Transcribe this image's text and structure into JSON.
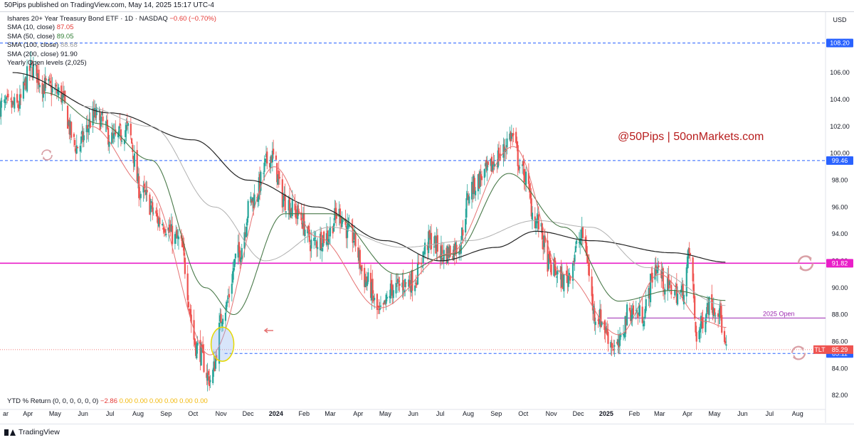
{
  "header": {
    "published": "50Pips published on TradingView.com, May 14, 2025 15:17 UTC-4"
  },
  "legend": {
    "title": "Ishares 20+ Year Treasury Bond ETF · 1D · NASDAQ",
    "title_change": "−0.60 (−0.70%)",
    "sma10_label": "SMA (10, close)",
    "sma10_value": "87.05",
    "sma50_label": "SMA (50, close)",
    "sma50_value": "89.05",
    "sma100_label": "SMA (100, close)",
    "sma100_value": "88.68",
    "sma200_label": "SMA (200, close)",
    "sma200_value": "91.90",
    "yearly_label": "Yearly Open levels (2,025)"
  },
  "ytd": {
    "label": "YTD % Return (0, 0, 0, 0, 0, 0)",
    "value": "−2.86",
    "zeros": "0.00  0.00  0.00  0.00  0.00  0.00"
  },
  "watermark": "@50Pips | 50onMarkets.com",
  "footer": {
    "brand": "TradingView"
  },
  "colors": {
    "up": "#26a69a",
    "down": "#ef5350",
    "sma10": "#e57373",
    "sma50": "#4a7a4a",
    "sma100": "#b0b0b0",
    "sma200": "#222222",
    "magenta": "#e91ec8",
    "purple": "#9c27b0",
    "blue": "#2962ff"
  },
  "chart_data": {
    "type": "candlestick",
    "currency": "USD",
    "ylim": [
      81.0,
      110.5
    ],
    "y_ticks": [
      82,
      84,
      86,
      88,
      90,
      92,
      94,
      96,
      98,
      100,
      102,
      104,
      106
    ],
    "x_ticks": [
      "ar",
      "Apr",
      "May",
      "Jun",
      "Jul",
      "Aug",
      "Sep",
      "Oct",
      "Nov",
      "Dec",
      "2024",
      "Feb",
      "Mar",
      "Apr",
      "May",
      "Jun",
      "Jul",
      "Aug",
      "Sep",
      "Oct",
      "Nov",
      "Dec",
      "2025",
      "Feb",
      "Mar",
      "Apr",
      "May",
      "Jun",
      "Jul",
      "Aug"
    ],
    "bold_ticks": [
      "2024",
      "2025"
    ],
    "price_keypoints": [
      {
        "date": "2023-03-20",
        "close": 103.5
      },
      {
        "date": "2023-04-05",
        "close": 106.3
      },
      {
        "date": "2023-04-20",
        "close": 105.0
      },
      {
        "date": "2023-05-05",
        "close": 104.5
      },
      {
        "date": "2023-05-25",
        "close": 100.5
      },
      {
        "date": "2023-06-15",
        "close": 102.8
      },
      {
        "date": "2023-07-05",
        "close": 101.0
      },
      {
        "date": "2023-07-20",
        "close": 101.8
      },
      {
        "date": "2023-08-05",
        "close": 97.0
      },
      {
        "date": "2023-08-25",
        "close": 95.0
      },
      {
        "date": "2023-09-15",
        "close": 93.5
      },
      {
        "date": "2023-10-06",
        "close": 85.5
      },
      {
        "date": "2023-10-20",
        "close": 83.2
      },
      {
        "date": "2023-11-05",
        "close": 88.5
      },
      {
        "date": "2023-11-20",
        "close": 92.5
      },
      {
        "date": "2023-12-05",
        "close": 96.5
      },
      {
        "date": "2023-12-27",
        "close": 99.8
      },
      {
        "date": "2024-01-10",
        "close": 96.5
      },
      {
        "date": "2024-01-25",
        "close": 95.5
      },
      {
        "date": "2024-02-10",
        "close": 93.3
      },
      {
        "date": "2024-02-25",
        "close": 93.8
      },
      {
        "date": "2024-03-10",
        "close": 95.5
      },
      {
        "date": "2024-03-25",
        "close": 93.8
      },
      {
        "date": "2024-04-10",
        "close": 90.5
      },
      {
        "date": "2024-04-25",
        "close": 88.0
      },
      {
        "date": "2024-05-10",
        "close": 90.0
      },
      {
        "date": "2024-05-31",
        "close": 90.5
      },
      {
        "date": "2024-06-20",
        "close": 93.5
      },
      {
        "date": "2024-07-05",
        "close": 92.5
      },
      {
        "date": "2024-07-20",
        "close": 93.0
      },
      {
        "date": "2024-08-05",
        "close": 97.5
      },
      {
        "date": "2024-08-20",
        "close": 98.5
      },
      {
        "date": "2024-09-05",
        "close": 99.8
      },
      {
        "date": "2024-09-17",
        "close": 101.3
      },
      {
        "date": "2024-10-01",
        "close": 98.5
      },
      {
        "date": "2024-10-15",
        "close": 95.0
      },
      {
        "date": "2024-11-01",
        "close": 91.5
      },
      {
        "date": "2024-11-15",
        "close": 90.5
      },
      {
        "date": "2024-12-06",
        "close": 93.8
      },
      {
        "date": "2024-12-20",
        "close": 88.0
      },
      {
        "date": "2025-01-13",
        "close": 85.5
      },
      {
        "date": "2025-01-27",
        "close": 88.3
      },
      {
        "date": "2025-02-10",
        "close": 88.0
      },
      {
        "date": "2025-02-25",
        "close": 91.5
      },
      {
        "date": "2025-03-10",
        "close": 90.0
      },
      {
        "date": "2025-03-25",
        "close": 89.5
      },
      {
        "date": "2025-04-04",
        "close": 92.5
      },
      {
        "date": "2025-04-11",
        "close": 86.5
      },
      {
        "date": "2025-04-25",
        "close": 88.8
      },
      {
        "date": "2025-05-05",
        "close": 88.5
      },
      {
        "date": "2025-05-14",
        "close": 85.3
      }
    ],
    "sma10_keypoints": [
      {
        "date": "2023-06-10",
        "close": 102.0
      },
      {
        "date": "2023-08-10",
        "close": 97.5
      },
      {
        "date": "2023-10-20",
        "close": 85.0
      },
      {
        "date": "2023-12-30",
        "close": 99.0
      },
      {
        "date": "2024-02-15",
        "close": 93.8
      },
      {
        "date": "2024-04-25",
        "close": 88.5
      },
      {
        "date": "2024-07-10",
        "close": 92.5
      },
      {
        "date": "2024-09-20",
        "close": 100.5
      },
      {
        "date": "2024-11-15",
        "close": 91.0
      },
      {
        "date": "2025-01-15",
        "close": 86.5
      },
      {
        "date": "2025-03-01",
        "close": 91.0
      },
      {
        "date": "2025-04-20",
        "close": 87.5
      },
      {
        "date": "2025-05-14",
        "close": 87.05
      }
    ],
    "sma50_keypoints": [
      {
        "date": "2023-04-20",
        "close": 104.5
      },
      {
        "date": "2023-06-20",
        "close": 102.2
      },
      {
        "date": "2023-08-15",
        "close": 99.5
      },
      {
        "date": "2023-10-15",
        "close": 90.0
      },
      {
        "date": "2023-11-15",
        "close": 88.0
      },
      {
        "date": "2024-01-10",
        "close": 95.5
      },
      {
        "date": "2024-03-01",
        "close": 95.5
      },
      {
        "date": "2024-05-15",
        "close": 91.0
      },
      {
        "date": "2024-07-15",
        "close": 92.5
      },
      {
        "date": "2024-09-15",
        "close": 98.5
      },
      {
        "date": "2024-11-15",
        "close": 94.5
      },
      {
        "date": "2025-01-15",
        "close": 89.0
      },
      {
        "date": "2025-03-15",
        "close": 89.8
      },
      {
        "date": "2025-05-14",
        "close": 89.05
      }
    ],
    "sma100_keypoints": [
      {
        "date": "2023-06-01",
        "close": 103.5
      },
      {
        "date": "2023-08-15",
        "close": 102.0
      },
      {
        "date": "2023-10-25",
        "close": 96.0
      },
      {
        "date": "2023-12-20",
        "close": 92.0
      },
      {
        "date": "2024-03-01",
        "close": 94.5
      },
      {
        "date": "2024-05-20",
        "close": 93.0
      },
      {
        "date": "2024-08-01",
        "close": 93.5
      },
      {
        "date": "2024-10-15",
        "close": 95.0
      },
      {
        "date": "2024-12-15",
        "close": 94.5
      },
      {
        "date": "2025-02-15",
        "close": 91.5
      },
      {
        "date": "2025-05-14",
        "close": 88.68
      }
    ],
    "sma200_keypoints": [
      {
        "date": "2023-03-15",
        "close": 106.0
      },
      {
        "date": "2023-07-01",
        "close": 103.0
      },
      {
        "date": "2023-10-01",
        "close": 101.0
      },
      {
        "date": "2023-12-01",
        "close": 98.0
      },
      {
        "date": "2024-02-15",
        "close": 96.0
      },
      {
        "date": "2024-05-01",
        "close": 93.5
      },
      {
        "date": "2024-07-01",
        "close": 92.0
      },
      {
        "date": "2024-09-01",
        "close": 93.0
      },
      {
        "date": "2024-10-15",
        "close": 94.2
      },
      {
        "date": "2024-12-15",
        "close": 93.5
      },
      {
        "date": "2025-03-15",
        "close": 92.6
      },
      {
        "date": "2025-05-14",
        "close": 91.9
      }
    ],
    "levels": [
      {
        "value": 108.2,
        "label": "108.20",
        "color": "#2962ff",
        "style": "dashed"
      },
      {
        "value": 99.46,
        "label": "99.46",
        "color": "#2962ff",
        "style": "dashed"
      },
      {
        "value": 91.82,
        "label": "91.82",
        "color": "#e91ec8",
        "style": "solid"
      },
      {
        "value": 87.75,
        "label": "2025 Open",
        "color": "#9c27b0",
        "style": "solid",
        "start_date": "2025-01-02"
      },
      {
        "value": 85.11,
        "label": "85.11",
        "color": "#2962ff",
        "style": "dashed",
        "start_date": "2023-11-05"
      }
    ],
    "last_price": {
      "ticker": "TLT",
      "value": "85.29",
      "raw": 85.29
    },
    "highlight_ellipse": {
      "date": "2023-11-01",
      "value": 85.8
    }
  }
}
